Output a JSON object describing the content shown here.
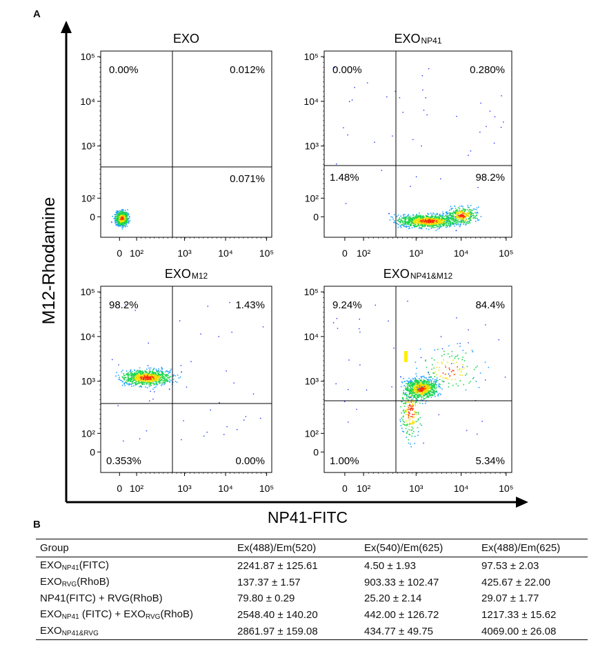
{
  "panel_labels": {
    "a": "A",
    "b": "B"
  },
  "figure": {
    "ylabel": "M12-Rhodamine",
    "xlabel": "NP41-FITC",
    "y_ticks": [
      "10⁵",
      "10⁴",
      "10³",
      "10²",
      "0"
    ],
    "x_ticks": [
      "0",
      "10²",
      "10³",
      "10⁴",
      "10⁵"
    ],
    "colors": {
      "low": "#1a2cff",
      "mid": "#19d44a",
      "high": "#ff2a00",
      "marker": "#ffee00"
    }
  },
  "chart_data": [
    {
      "type": "scatter",
      "title_main": "EXO",
      "title_sub": "",
      "xlabel": "NP41-FITC",
      "ylabel": "M12-Rhodamine",
      "axis_scale": "biexponential",
      "x_range": [
        "0",
        "10⁵"
      ],
      "y_range": [
        "0",
        "10⁵"
      ],
      "quadrant_percent": {
        "upper_left": "0.00%",
        "upper_right": "0.012%",
        "lower_left": "",
        "lower_right": "0.071%"
      },
      "population_center": {
        "x": 10,
        "y": 10
      }
    },
    {
      "type": "scatter",
      "title_main": "EXO",
      "title_sub": "NP41",
      "xlabel": "NP41-FITC",
      "ylabel": "M12-Rhodamine",
      "axis_scale": "biexponential",
      "x_range": [
        "0",
        "10⁵"
      ],
      "y_range": [
        "0",
        "10⁵"
      ],
      "quadrant_percent": {
        "upper_left": "0.00%",
        "upper_right": "0.280%",
        "lower_left": "1.48%",
        "lower_right": "98.2%"
      },
      "population_center": {
        "x": 5000,
        "y": 10
      }
    },
    {
      "type": "scatter",
      "title_main": "EXO",
      "title_sub": "M12",
      "xlabel": "NP41-FITC",
      "ylabel": "M12-Rhodamine",
      "axis_scale": "biexponential",
      "x_range": [
        "0",
        "10⁵"
      ],
      "y_range": [
        "0",
        "10⁵"
      ],
      "quadrant_percent": {
        "upper_left": "98.2%",
        "upper_right": "1.43%",
        "lower_left": "0.353%",
        "lower_right": "0.00%"
      },
      "population_center": {
        "x": 150,
        "y": 1500
      }
    },
    {
      "type": "scatter",
      "title_main": "EXO",
      "title_sub": "NP41&M12",
      "xlabel": "NP41-FITC",
      "ylabel": "M12-Rhodamine",
      "axis_scale": "biexponential",
      "x_range": [
        "0",
        "10⁵"
      ],
      "y_range": [
        "0",
        "10⁵"
      ],
      "quadrant_percent": {
        "upper_left": "9.24%",
        "upper_right": "84.4%",
        "lower_left": "1.00%",
        "lower_right": "5.34%"
      },
      "population_center": {
        "x": 1500,
        "y": 1500
      }
    }
  ],
  "table": {
    "headers": [
      "Group",
      "Ex(488)/Em(520)",
      "Ex(540)/Em(625)",
      "Ex(488)/Em(625)"
    ],
    "rows": [
      {
        "group": [
          [
            "EXO",
            ""
          ],
          [
            "NP41",
            "sub"
          ],
          [
            "(FITC)",
            ""
          ]
        ],
        "values": [
          "2241.87 ± 125.61",
          "4.50 ± 1.93",
          "97.53 ± 2.03"
        ]
      },
      {
        "group": [
          [
            "EXO",
            ""
          ],
          [
            "RVG",
            "sub"
          ],
          [
            "(RhoB)",
            ""
          ]
        ],
        "values": [
          "137.37 ± 1.57",
          "903.33 ± 102.47",
          "425.67 ± 22.00"
        ]
      },
      {
        "group": [
          [
            "NP41(FITC) + RVG(RhoB)",
            ""
          ]
        ],
        "values": [
          "79.80 ± 0.29",
          "25.20 ± 2.14",
          "29.07 ± 1.77"
        ]
      },
      {
        "group": [
          [
            "EXO",
            ""
          ],
          [
            "NP41",
            "sub"
          ],
          [
            " (FITC) + EXO",
            ""
          ],
          [
            "RVG",
            "sub"
          ],
          [
            "(RhoB)",
            ""
          ]
        ],
        "values": [
          "2548.40 ± 140.20",
          "442.00 ± 126.72",
          "1217.33 ± 15.62"
        ]
      },
      {
        "group": [
          [
            "EXO",
            ""
          ],
          [
            "NP41&RVG",
            "sub"
          ]
        ],
        "values": [
          "2861.97 ± 159.08",
          "434.77 ± 49.75",
          "4069.00 ± 26.08"
        ]
      }
    ]
  }
}
